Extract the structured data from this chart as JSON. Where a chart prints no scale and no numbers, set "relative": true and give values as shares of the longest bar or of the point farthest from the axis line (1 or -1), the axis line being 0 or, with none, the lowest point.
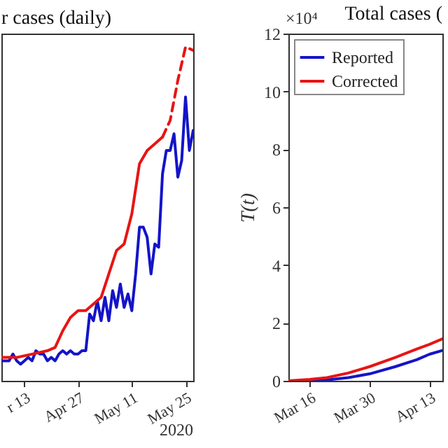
{
  "chart_data": [
    {
      "type": "line",
      "title": "r cases (daily)",
      "relative": true,
      "grid": false,
      "xlim": [
        "2020-04-07",
        "2020-05-27"
      ],
      "xticks": [
        {
          "value": "2020-04-13",
          "label": "r 13"
        },
        {
          "value": "2020-04-27",
          "label": "Apr 27"
        },
        {
          "value": "2020-05-11",
          "label": "May 11"
        },
        {
          "value": "2020-05-25",
          "label": "May 25"
        }
      ],
      "annotations": [
        "2020"
      ],
      "series": [
        {
          "color": "#1414c8",
          "x": [
            "2020-04-07",
            "2020-04-09",
            "2020-04-10",
            "2020-04-11",
            "2020-04-12",
            "2020-04-13",
            "2020-04-14",
            "2020-04-15",
            "2020-04-16",
            "2020-04-17",
            "2020-04-18",
            "2020-04-19",
            "2020-04-20",
            "2020-04-21",
            "2020-04-22",
            "2020-04-23",
            "2020-04-24",
            "2020-04-25",
            "2020-04-26",
            "2020-04-27",
            "2020-04-28",
            "2020-04-29",
            "2020-04-30",
            "2020-05-01",
            "2020-05-02",
            "2020-05-03",
            "2020-05-04",
            "2020-05-05",
            "2020-05-06",
            "2020-05-07",
            "2020-05-08",
            "2020-05-09",
            "2020-05-10",
            "2020-05-11",
            "2020-05-12",
            "2020-05-13",
            "2020-05-14",
            "2020-05-15",
            "2020-05-16",
            "2020-05-17",
            "2020-05-18",
            "2020-05-19",
            "2020-05-20",
            "2020-05-21",
            "2020-05-22",
            "2020-05-23",
            "2020-05-24",
            "2020-05-25",
            "2020-05-26",
            "2020-05-27"
          ],
          "values": [
            0.06,
            0.06,
            0.08,
            0.06,
            0.05,
            0.06,
            0.07,
            0.06,
            0.09,
            0.08,
            0.08,
            0.06,
            0.07,
            0.06,
            0.08,
            0.09,
            0.08,
            0.09,
            0.08,
            0.08,
            0.09,
            0.09,
            0.2,
            0.18,
            0.24,
            0.18,
            0.25,
            0.18,
            0.27,
            0.22,
            0.29,
            0.22,
            0.26,
            0.21,
            0.32,
            0.46,
            0.46,
            0.43,
            0.32,
            0.41,
            0.4,
            0.62,
            0.69,
            0.69,
            0.74,
            0.61,
            0.66,
            0.85,
            0.69,
            0.75
          ]
        },
        {
          "color": "#e81414",
          "x": [
            "2020-04-07",
            "2020-04-11",
            "2020-04-15",
            "2020-04-19",
            "2020-04-21",
            "2020-04-23",
            "2020-04-25",
            "2020-04-27",
            "2020-04-29",
            "2020-05-01",
            "2020-05-03",
            "2020-05-05",
            "2020-05-07",
            "2020-05-09",
            "2020-05-11",
            "2020-05-13",
            "2020-05-15",
            "2020-05-17",
            "2020-05-19"
          ],
          "values": [
            0.07,
            0.07,
            0.08,
            0.09,
            0.1,
            0.15,
            0.19,
            0.21,
            0.21,
            0.23,
            0.25,
            0.32,
            0.39,
            0.41,
            0.5,
            0.65,
            0.69,
            0.71,
            0.73
          ]
        },
        {
          "color": "#e81414",
          "line_style": "dashed",
          "x": [
            "2020-05-19",
            "2020-05-21",
            "2020-05-23",
            "2020-05-25",
            "2020-05-27"
          ],
          "values": [
            0.73,
            0.78,
            0.9,
            1,
            0.99
          ]
        }
      ]
    },
    {
      "type": "line",
      "title": "Total cases (",
      "ylabel": "T(t)",
      "grid": false,
      "legend": "top left",
      "xlim": [
        "2020-03-11",
        "2020-04-16"
      ],
      "xticks": [
        {
          "value": "2020-03-16",
          "label": "Mar 16"
        },
        {
          "value": "2020-03-30",
          "label": "Mar 30"
        },
        {
          "value": "2020-04-13",
          "label": "Apr 13"
        }
      ],
      "ylim": [
        0,
        12
      ],
      "yticks": [
        0,
        2,
        4,
        6,
        8,
        10,
        12
      ],
      "annotations": [
        "×10⁴"
      ],
      "series": [
        {
          "name": "Reported",
          "color": "#1414c8",
          "x": [
            "2020-03-11",
            "2020-03-16",
            "2020-03-20",
            "2020-03-25",
            "2020-03-30",
            "2020-04-05",
            "2020-04-10",
            "2020-04-13",
            "2020-04-16"
          ],
          "values": [
            0,
            0,
            0.03,
            0.11,
            0.24,
            0.49,
            0.73,
            0.92,
            1.05
          ]
        },
        {
          "name": "Corrected",
          "color": "#e81414",
          "x": [
            "2020-03-11",
            "2020-03-16",
            "2020-03-20",
            "2020-03-25",
            "2020-03-30",
            "2020-04-05",
            "2020-04-10",
            "2020-04-13",
            "2020-04-16"
          ],
          "values": [
            0,
            0.05,
            0.11,
            0.27,
            0.49,
            0.81,
            1.1,
            1.26,
            1.45
          ]
        }
      ]
    }
  ]
}
